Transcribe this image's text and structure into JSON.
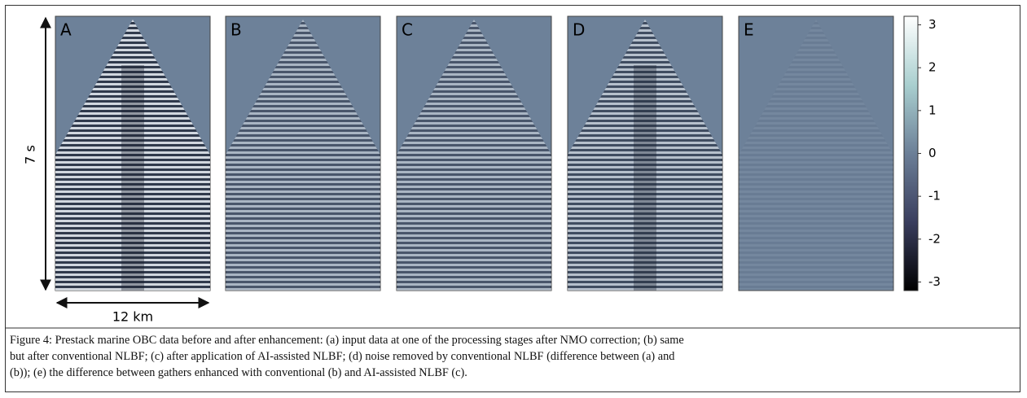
{
  "figure": {
    "panels": [
      "A",
      "B",
      "C",
      "D",
      "E"
    ],
    "y_label": "7 s",
    "x_label": "12 km",
    "colorbar": {
      "clim": [
        -3.2,
        3.2
      ],
      "ticks": [
        3,
        2,
        1,
        0,
        -1,
        -2,
        -3
      ]
    },
    "caption": [
      "Figure 4: Prestack marine OBC data before and after enhancement: (a) input data at one of the processing stages after NMO correction; (b) same",
      "but after conventional NLBF; (c) after application of AI-assisted NLBF; (d) noise removed by conventional NLBF (difference between (a) and",
      "(b)); (e) the difference between gathers enhanced with conventional (b) and AI-assisted NLBF (c)."
    ]
  }
}
